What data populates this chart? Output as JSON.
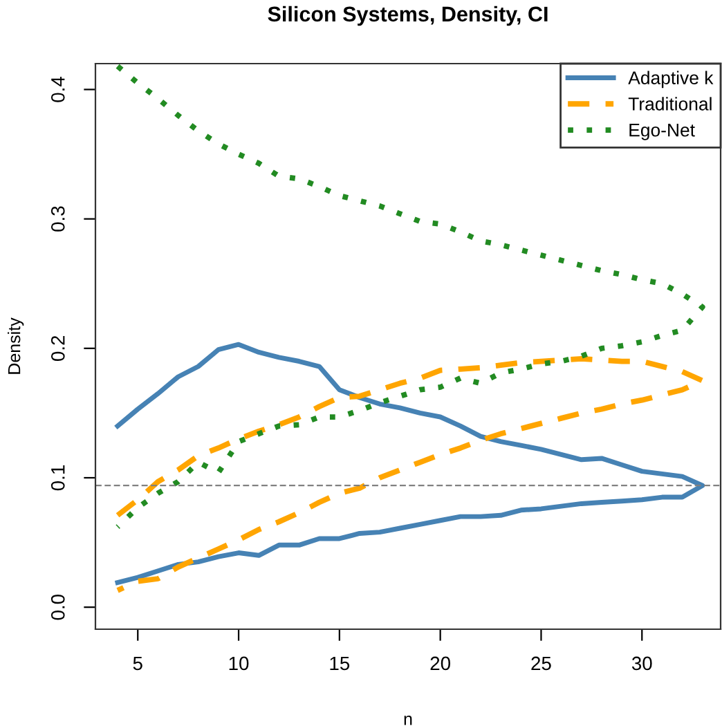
{
  "chart_data": {
    "type": "line",
    "title": "Silicon Systems, Density, CI",
    "xlabel": "n",
    "ylabel": "Density",
    "xlim": [
      2.9,
      33.9
    ],
    "ylim": [
      -0.017,
      0.42
    ],
    "xticks": [
      5,
      10,
      15,
      20,
      25,
      30
    ],
    "yticks": [
      {
        "value": 0,
        "label": "0.0"
      },
      0.1,
      0.2,
      0.3,
      0.4
    ],
    "legend": "top right",
    "grid": false,
    "marker": "none",
    "ref_lines": [
      {
        "axis": "y",
        "value": 0.094,
        "color": "#808080",
        "line_style": "dashed"
      }
    ],
    "series": [
      {
        "name": "Adaptive k",
        "color": "#4682b4",
        "line_style": "solid",
        "x": [
          4,
          5,
          6,
          7,
          8,
          9,
          10,
          11,
          12,
          13,
          14,
          15,
          16,
          17,
          18,
          19,
          20,
          21,
          22,
          23,
          24,
          25,
          26,
          27,
          28,
          29,
          30,
          31,
          32,
          33,
          32,
          31,
          30,
          29,
          28,
          27,
          26,
          25,
          24,
          23,
          22,
          21,
          20,
          19,
          18,
          17,
          16,
          15,
          14,
          13,
          12,
          11,
          10,
          9,
          8,
          7,
          6,
          5,
          4
        ],
        "values": [
          0.14,
          0.153,
          0.165,
          0.178,
          0.186,
          0.199,
          0.203,
          0.197,
          0.193,
          0.19,
          0.186,
          0.168,
          0.162,
          0.157,
          0.154,
          0.15,
          0.147,
          0.14,
          0.132,
          0.128,
          0.125,
          0.122,
          0.118,
          0.114,
          0.115,
          0.11,
          0.105,
          0.103,
          0.101,
          0.094,
          0.085,
          0.085,
          0.083,
          0.082,
          0.081,
          0.08,
          0.078,
          0.076,
          0.075,
          0.071,
          0.07,
          0.07,
          0.067,
          0.064,
          0.061,
          0.058,
          0.057,
          0.053,
          0.053,
          0.048,
          0.048,
          0.04,
          0.042,
          0.039,
          0.035,
          0.033,
          0.028,
          0.023,
          0.019
        ]
      },
      {
        "name": "Traditional",
        "color": "#ffa500",
        "line_style": "dashed",
        "x": [
          4,
          5,
          6,
          7,
          8,
          9,
          10,
          11,
          12,
          13,
          14,
          15,
          16,
          17,
          18,
          19,
          20,
          21,
          22,
          23,
          24,
          25,
          26,
          27,
          28,
          29,
          30,
          31,
          32,
          33,
          32,
          31,
          30,
          29,
          28,
          27,
          26,
          25,
          24,
          23,
          22,
          21,
          20,
          19,
          18,
          17,
          16,
          15,
          14,
          13,
          12,
          11,
          10,
          9,
          8,
          7,
          6,
          5,
          4
        ],
        "values": [
          0.071,
          0.083,
          0.097,
          0.106,
          0.117,
          0.123,
          0.13,
          0.136,
          0.141,
          0.147,
          0.155,
          0.162,
          0.163,
          0.168,
          0.173,
          0.177,
          0.183,
          0.184,
          0.185,
          0.187,
          0.189,
          0.19,
          0.191,
          0.192,
          0.191,
          0.19,
          0.19,
          0.186,
          0.182,
          0.175,
          0.168,
          0.164,
          0.16,
          0.157,
          0.153,
          0.15,
          0.146,
          0.142,
          0.138,
          0.134,
          0.129,
          0.123,
          0.118,
          0.112,
          0.106,
          0.1,
          0.092,
          0.088,
          0.081,
          0.073,
          0.066,
          0.06,
          0.052,
          0.045,
          0.038,
          0.031,
          0.022,
          0.02,
          0.013
        ]
      },
      {
        "name": "Ego-Net",
        "color": "#228b22",
        "line_style": "dotted",
        "x": [
          4,
          5,
          6,
          7,
          8,
          9,
          10,
          11,
          12,
          13,
          14,
          15,
          16,
          17,
          18,
          19,
          20,
          21,
          22,
          23,
          24,
          25,
          26,
          27,
          28,
          29,
          30,
          31,
          32,
          33,
          32,
          31,
          30,
          29,
          28,
          27,
          26,
          25,
          24,
          23,
          22,
          21,
          20,
          19,
          18,
          17,
          16,
          15,
          14,
          13,
          12,
          11,
          10,
          9,
          8,
          7,
          6,
          5,
          4
        ],
        "values": [
          0.418,
          0.405,
          0.393,
          0.38,
          0.368,
          0.358,
          0.35,
          0.343,
          0.333,
          0.331,
          0.325,
          0.318,
          0.314,
          0.31,
          0.304,
          0.298,
          0.296,
          0.29,
          0.283,
          0.28,
          0.276,
          0.272,
          0.268,
          0.264,
          0.26,
          0.257,
          0.253,
          0.25,
          0.242,
          0.232,
          0.214,
          0.21,
          0.205,
          0.202,
          0.2,
          0.194,
          0.19,
          0.188,
          0.184,
          0.181,
          0.173,
          0.177,
          0.17,
          0.168,
          0.163,
          0.158,
          0.152,
          0.147,
          0.147,
          0.141,
          0.14,
          0.134,
          0.128,
          0.104,
          0.112,
          0.097,
          0.088,
          0.077,
          0.062
        ]
      }
    ]
  }
}
